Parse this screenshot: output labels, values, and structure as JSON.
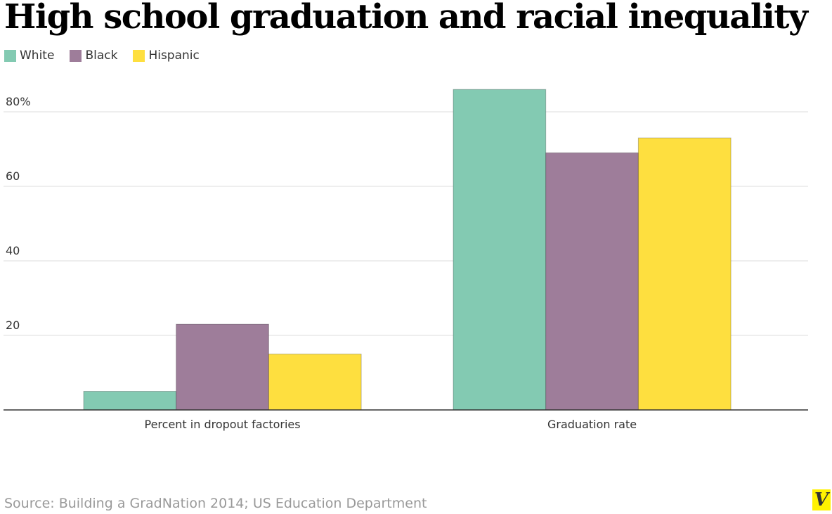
{
  "chart_data": {
    "type": "bar",
    "title": "High school graduation and racial inequality",
    "categories": [
      "Percent in dropout factories",
      "Graduation rate"
    ],
    "series": [
      {
        "name": "White",
        "color": "#83cab2",
        "values": [
          5,
          86
        ]
      },
      {
        "name": "Black",
        "color": "#9e7d9a",
        "values": [
          23,
          69
        ]
      },
      {
        "name": "Hispanic",
        "color": "#fedf3f",
        "values": [
          15,
          73
        ]
      }
    ],
    "yticks": [
      {
        "value": 20,
        "label": "20"
      },
      {
        "value": 40,
        "label": "40"
      },
      {
        "value": 60,
        "label": "60"
      },
      {
        "value": 80,
        "label": "80%"
      }
    ],
    "ylim": [
      0,
      80
    ],
    "grid": true,
    "legend": "top-left",
    "xlabel": "",
    "ylabel": ""
  },
  "source": "Source: Building a GradNation 2014; US Education Department",
  "logo": "V",
  "logo_color": "#fff200"
}
